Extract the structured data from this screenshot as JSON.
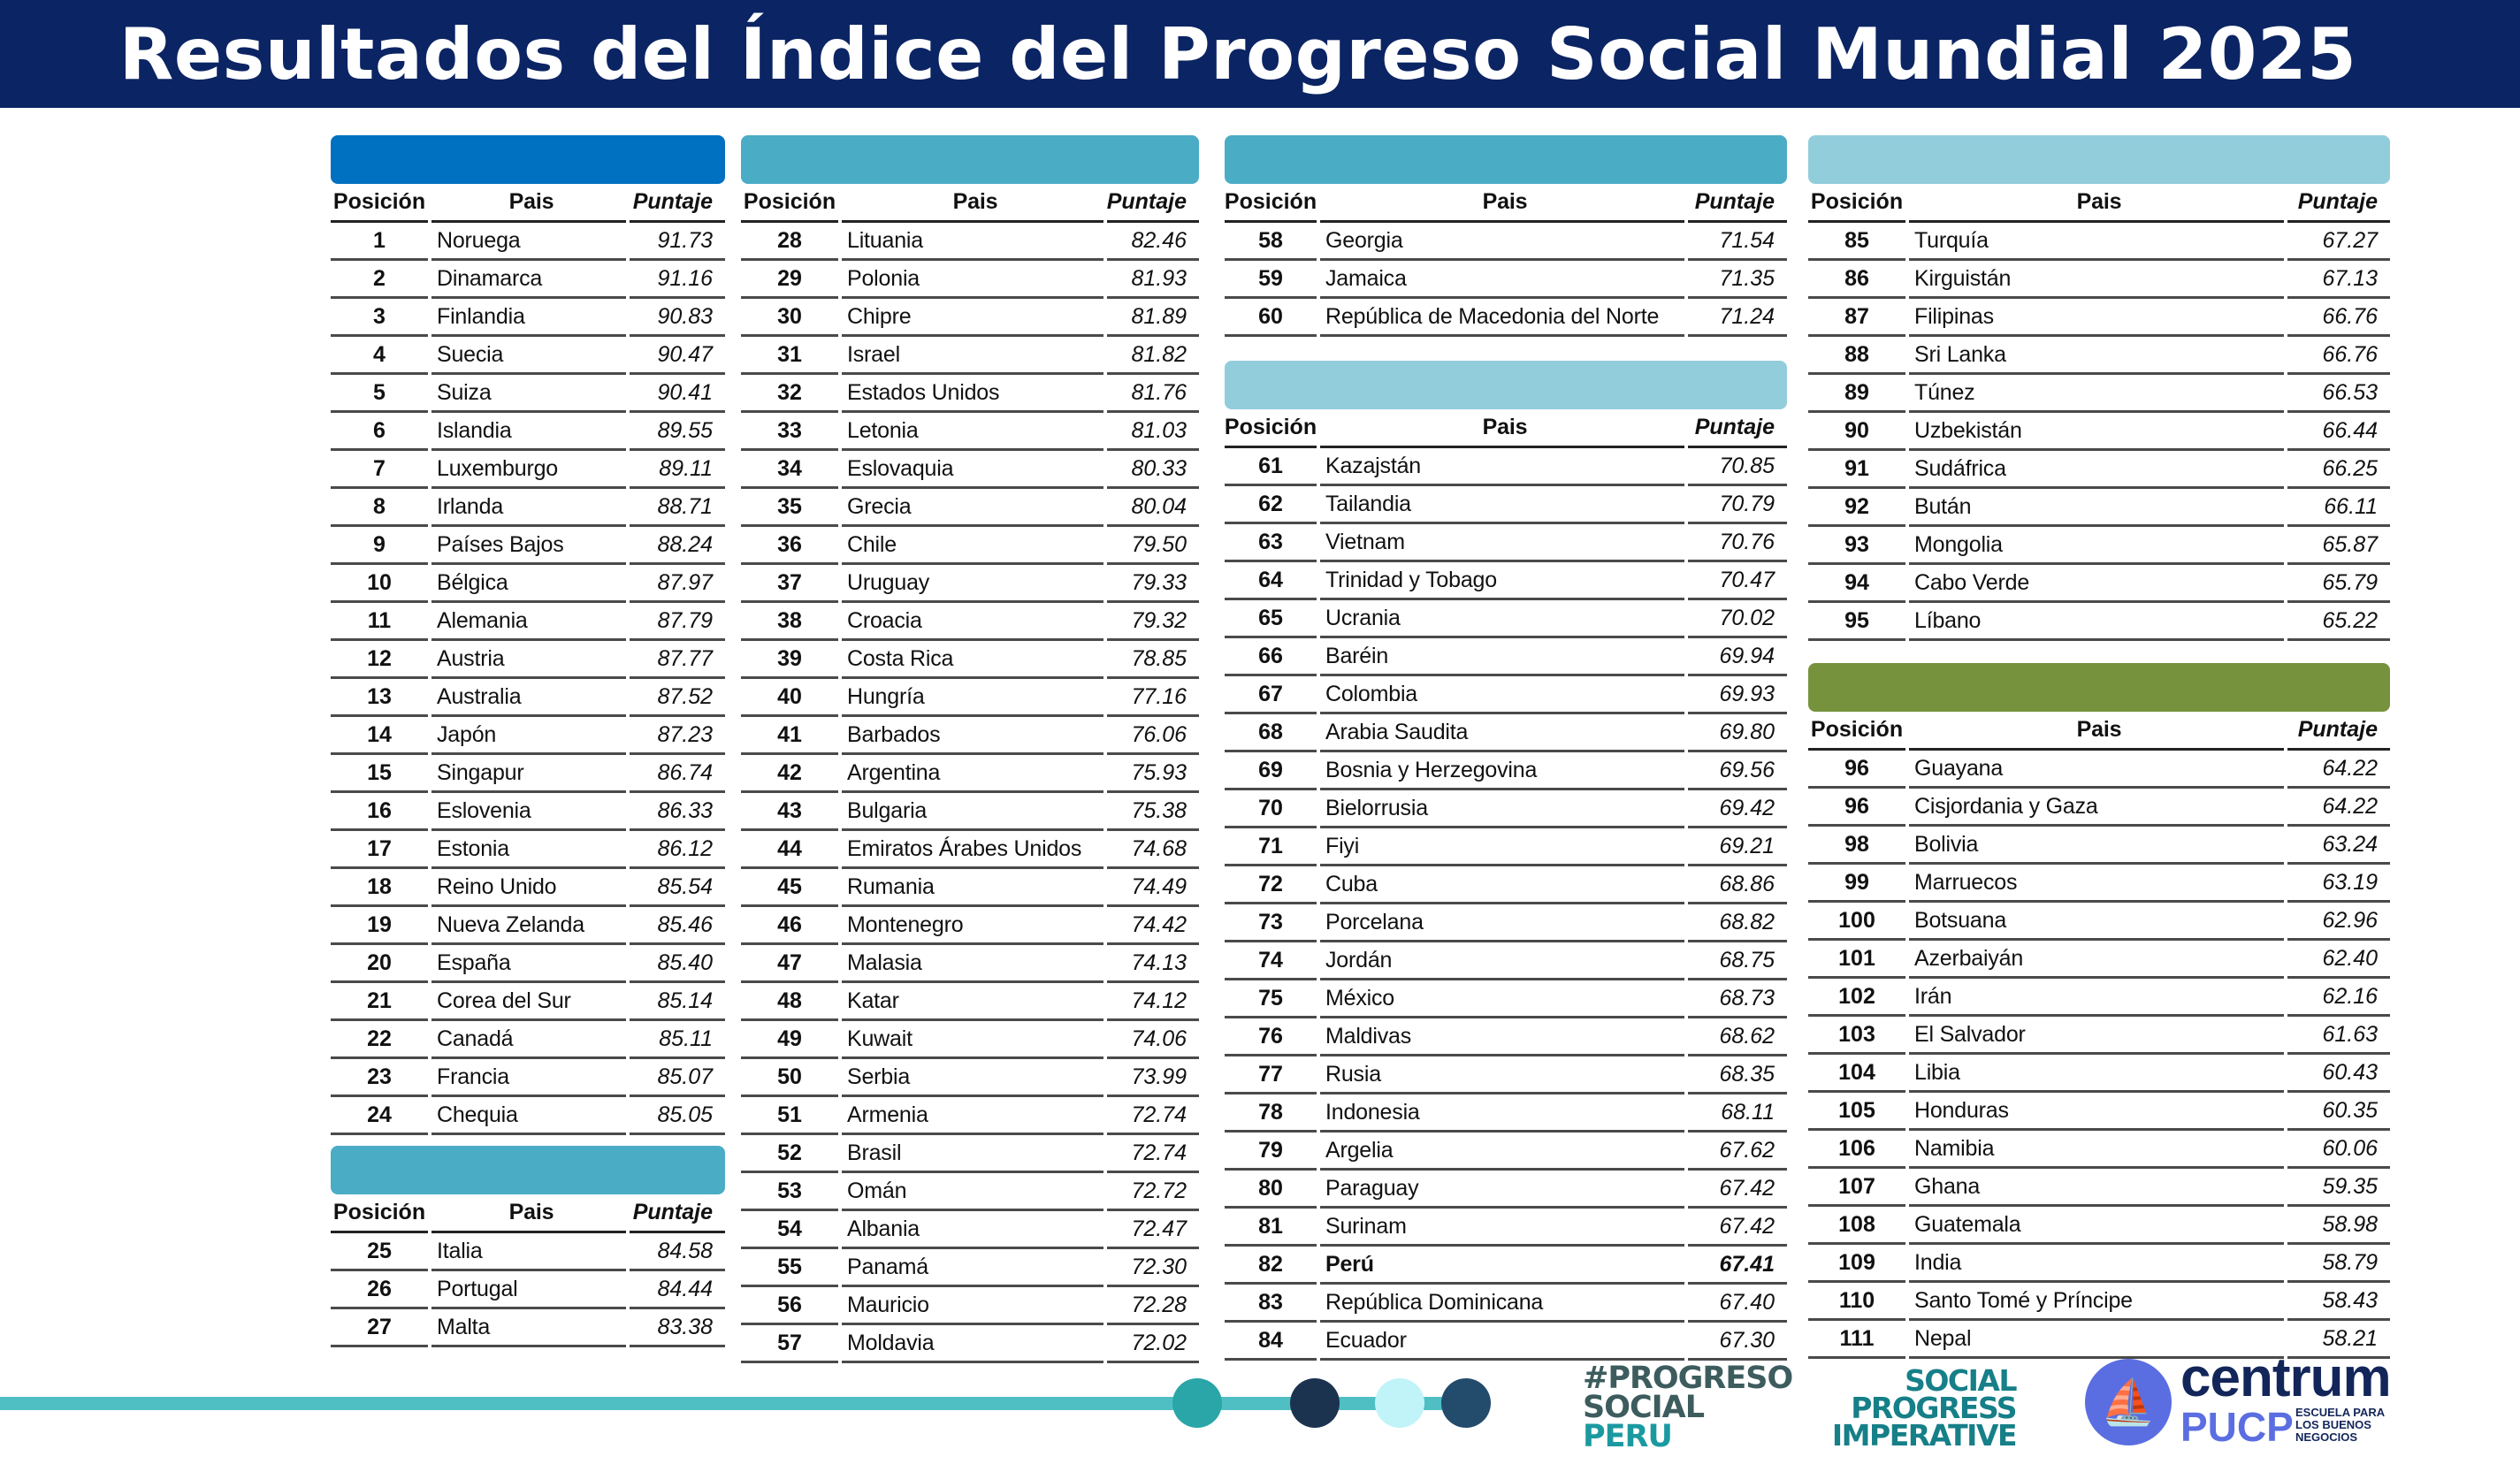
{
  "title": "Resultados del Índice del Progreso Social Mundial 2025",
  "headers": {
    "position": "Posición",
    "country": "Pais",
    "score": "Puntaje"
  },
  "colors": {
    "title_bg": "#0b2463",
    "tier1": "#0070c0",
    "tier2": "#4bacc6",
    "tier3": "#92cddc",
    "tier4": "#76923c"
  },
  "blocks": [
    {
      "band_color": "#0070c0",
      "rows": [
        [
          "1",
          "Noruega",
          "91.73"
        ],
        [
          "2",
          "Dinamarca",
          "91.16"
        ],
        [
          "3",
          "Finlandia",
          "90.83"
        ],
        [
          "4",
          "Suecia",
          "90.47"
        ],
        [
          "5",
          "Suiza",
          "90.41"
        ],
        [
          "6",
          "Islandia",
          "89.55"
        ],
        [
          "7",
          "Luxemburgo",
          "89.11"
        ],
        [
          "8",
          "Irlanda",
          "88.71"
        ],
        [
          "9",
          "Países Bajos",
          "88.24"
        ],
        [
          "10",
          "Bélgica",
          "87.97"
        ],
        [
          "11",
          "Alemania",
          "87.79"
        ],
        [
          "12",
          "Austria",
          "87.77"
        ],
        [
          "13",
          "Australia",
          "87.52"
        ],
        [
          "14",
          "Japón",
          "87.23"
        ],
        [
          "15",
          "Singapur",
          "86.74"
        ],
        [
          "16",
          "Eslovenia",
          "86.33"
        ],
        [
          "17",
          "Estonia",
          "86.12"
        ],
        [
          "18",
          "Reino Unido",
          "85.54"
        ],
        [
          "19",
          "Nueva Zelanda",
          "85.46"
        ],
        [
          "20",
          "España",
          "85.40"
        ],
        [
          "21",
          "Corea del Sur",
          "85.14"
        ],
        [
          "22",
          "Canadá",
          "85.11"
        ],
        [
          "23",
          "Francia",
          "85.07"
        ],
        [
          "24",
          "Chequia",
          "85.05"
        ]
      ]
    },
    {
      "band_color": "#4bacc6",
      "rows": [
        [
          "25",
          "Italia",
          "84.58"
        ],
        [
          "26",
          "Portugal",
          "84.44"
        ],
        [
          "27",
          "Malta",
          "83.38"
        ]
      ]
    },
    {
      "band_color": "#4bacc6",
      "rows": [
        [
          "28",
          "Lituania",
          "82.46"
        ],
        [
          "29",
          "Polonia",
          "81.93"
        ],
        [
          "30",
          "Chipre",
          "81.89"
        ],
        [
          "31",
          "Israel",
          "81.82"
        ],
        [
          "32",
          "Estados Unidos",
          "81.76"
        ],
        [
          "33",
          "Letonia",
          "81.03"
        ],
        [
          "34",
          "Eslovaquia",
          "80.33"
        ],
        [
          "35",
          "Grecia",
          "80.04"
        ],
        [
          "36",
          "Chile",
          "79.50"
        ],
        [
          "37",
          "Uruguay",
          "79.33"
        ],
        [
          "38",
          "Croacia",
          "79.32"
        ],
        [
          "39",
          "Costa Rica",
          "78.85"
        ],
        [
          "40",
          "Hungría",
          "77.16"
        ],
        [
          "41",
          "Barbados",
          "76.06"
        ],
        [
          "42",
          "Argentina",
          "75.93"
        ],
        [
          "43",
          "Bulgaria",
          "75.38"
        ],
        [
          "44",
          "Emiratos Árabes Unidos",
          "74.68"
        ],
        [
          "45",
          "Rumania",
          "74.49"
        ],
        [
          "46",
          "Montenegro",
          "74.42"
        ],
        [
          "47",
          "Malasia",
          "74.13"
        ],
        [
          "48",
          "Katar",
          "74.12"
        ],
        [
          "49",
          "Kuwait",
          "74.06"
        ],
        [
          "50",
          "Serbia",
          "73.99"
        ],
        [
          "51",
          "Armenia",
          "72.74"
        ],
        [
          "52",
          "Brasil",
          "72.74"
        ],
        [
          "53",
          "Omán",
          "72.72"
        ],
        [
          "54",
          "Albania",
          "72.47"
        ],
        [
          "55",
          "Panamá",
          "72.30"
        ],
        [
          "56",
          "Mauricio",
          "72.28"
        ],
        [
          "57",
          "Moldavia",
          "72.02"
        ]
      ]
    },
    {
      "band_color": "#4bacc6",
      "rows": [
        [
          "58",
          "Georgia",
          "71.54"
        ],
        [
          "59",
          "Jamaica",
          "71.35"
        ],
        [
          "60",
          "República de Macedonia del Norte",
          "71.24"
        ]
      ]
    },
    {
      "band_color": "#92cddc",
      "rows": [
        [
          "61",
          "Kazajstán",
          "70.85"
        ],
        [
          "62",
          "Tailandia",
          "70.79"
        ],
        [
          "63",
          "Vietnam",
          "70.76"
        ],
        [
          "64",
          "Trinidad y Tobago",
          "70.47"
        ],
        [
          "65",
          "Ucrania",
          "70.02"
        ],
        [
          "66",
          "Baréin",
          "69.94"
        ],
        [
          "67",
          "Colombia",
          "69.93"
        ],
        [
          "68",
          "Arabia Saudita",
          "69.80"
        ],
        [
          "69",
          "Bosnia y Herzegovina",
          "69.56"
        ],
        [
          "70",
          "Bielorrusia",
          "69.42"
        ],
        [
          "71",
          "Fiyi",
          "69.21"
        ],
        [
          "72",
          "Cuba",
          "68.86"
        ],
        [
          "73",
          "Porcelana",
          "68.82"
        ],
        [
          "74",
          "Jordán",
          "68.75"
        ],
        [
          "75",
          "México",
          "68.73"
        ],
        [
          "76",
          "Maldivas",
          "68.62"
        ],
        [
          "77",
          "Rusia",
          "68.35"
        ],
        [
          "78",
          "Indonesia",
          "68.11"
        ],
        [
          "79",
          "Argelia",
          "67.62"
        ],
        [
          "80",
          "Paraguay",
          "67.42"
        ],
        [
          "81",
          "Surinam",
          "67.42"
        ],
        [
          "82",
          "Perú",
          "67.41"
        ],
        [
          "83",
          "República Dominicana",
          "67.40"
        ],
        [
          "84",
          "Ecuador",
          "67.30"
        ]
      ]
    },
    {
      "band_color": "#92cddc",
      "rows": [
        [
          "85",
          "Turquía",
          "67.27"
        ],
        [
          "86",
          "Kirguistán",
          "67.13"
        ],
        [
          "87",
          "Filipinas",
          "66.76"
        ],
        [
          "88",
          "Sri Lanka",
          "66.76"
        ],
        [
          "89",
          "Túnez",
          "66.53"
        ],
        [
          "90",
          "Uzbekistán",
          "66.44"
        ],
        [
          "91",
          "Sudáfrica",
          "66.25"
        ],
        [
          "92",
          "Bután",
          "66.11"
        ],
        [
          "93",
          "Mongolia",
          "65.87"
        ],
        [
          "94",
          "Cabo Verde",
          "65.79"
        ],
        [
          "95",
          "Líbano",
          "65.22"
        ]
      ]
    },
    {
      "band_color": "#76923c",
      "rows": [
        [
          "96",
          "Guayana",
          "64.22"
        ],
        [
          "96",
          "Cisjordania y Gaza",
          "64.22"
        ],
        [
          "98",
          "Bolivia",
          "63.24"
        ],
        [
          "99",
          "Marruecos",
          "63.19"
        ],
        [
          "100",
          "Botsuana",
          "62.96"
        ],
        [
          "101",
          "Azerbaiyán",
          "62.40"
        ],
        [
          "102",
          "Irán",
          "62.16"
        ],
        [
          "103",
          "El Salvador",
          "61.63"
        ],
        [
          "104",
          "Libia",
          "60.43"
        ],
        [
          "105",
          "Honduras",
          "60.35"
        ],
        [
          "106",
          "Namibia",
          "60.06"
        ],
        [
          "107",
          "Ghana",
          "59.35"
        ],
        [
          "108",
          "Guatemala",
          "58.98"
        ],
        [
          "109",
          "India",
          "58.79"
        ],
        [
          "110",
          "Santo Tomé y Príncipe",
          "58.43"
        ],
        [
          "111",
          "Nepal",
          "58.21"
        ]
      ]
    }
  ],
  "highlight_country": "Perú",
  "footer": {
    "dot_colors": [
      "#2aa5a8",
      "#1c3350",
      "#c0f4f8",
      "#234b6c"
    ],
    "logo_progreso": [
      "#PROGRESO",
      "SOCIAL",
      "PERU"
    ],
    "logo_spi": [
      "SOCIAL",
      "PROGRESS",
      "IMPERATIVE"
    ],
    "logo_centrum": {
      "name": "centrum",
      "sub": "PUCP",
      "tagline": [
        "ESCUELA PARA",
        "LOS BUENOS",
        "NEGOCIOS"
      ]
    }
  }
}
